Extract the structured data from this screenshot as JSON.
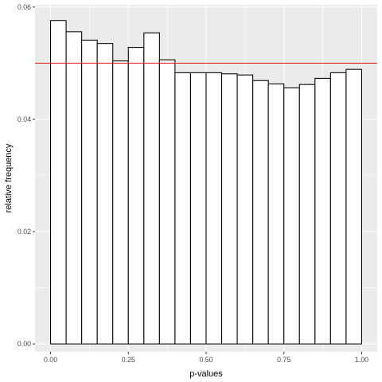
{
  "chart_data": {
    "type": "bar",
    "xlabel": "p-values",
    "ylabel": "relative frequency",
    "xlim": [
      -0.05,
      1.05
    ],
    "ylim": [
      -0.0014,
      0.0604
    ],
    "x_ticks": [
      0.0,
      0.25,
      0.5,
      0.75,
      1.0
    ],
    "x_tick_labels": [
      "0.00",
      "0.25",
      "0.50",
      "0.75",
      "1.00"
    ],
    "y_ticks": [
      0.0,
      0.02,
      0.04,
      0.06
    ],
    "y_tick_labels": [
      "0.00",
      "0.02",
      "0.04",
      "0.06"
    ],
    "bin_width": 0.05,
    "bins": [
      {
        "x": 0.025,
        "y": 0.0576
      },
      {
        "x": 0.075,
        "y": 0.0556
      },
      {
        "x": 0.125,
        "y": 0.0541
      },
      {
        "x": 0.175,
        "y": 0.0535
      },
      {
        "x": 0.225,
        "y": 0.0504
      },
      {
        "x": 0.275,
        "y": 0.0528
      },
      {
        "x": 0.325,
        "y": 0.0554
      },
      {
        "x": 0.375,
        "y": 0.0506
      },
      {
        "x": 0.425,
        "y": 0.0483
      },
      {
        "x": 0.475,
        "y": 0.0483
      },
      {
        "x": 0.525,
        "y": 0.0483
      },
      {
        "x": 0.575,
        "y": 0.0481
      },
      {
        "x": 0.625,
        "y": 0.0479
      },
      {
        "x": 0.675,
        "y": 0.0469
      },
      {
        "x": 0.725,
        "y": 0.0463
      },
      {
        "x": 0.775,
        "y": 0.0456
      },
      {
        "x": 0.825,
        "y": 0.0462
      },
      {
        "x": 0.875,
        "y": 0.0473
      },
      {
        "x": 0.925,
        "y": 0.0483
      },
      {
        "x": 0.975,
        "y": 0.0489
      }
    ],
    "reference_line": {
      "y": 0.05,
      "color": "#e41a1c"
    },
    "bar_fill": "#ffffff",
    "bar_outline": "#000000",
    "panel_background": "#ebebeb",
    "grid": true
  }
}
